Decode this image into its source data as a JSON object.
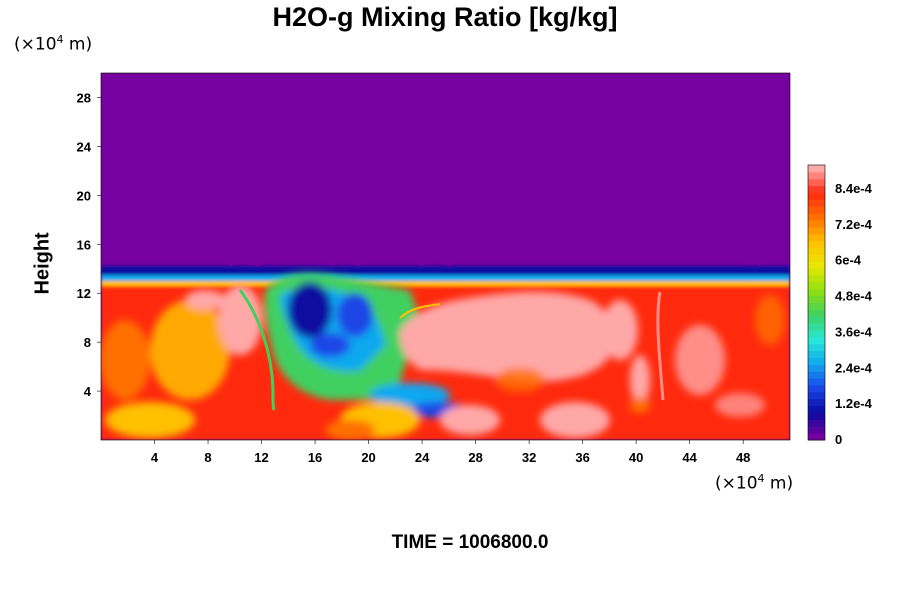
{
  "chart_data": {
    "type": "heatmap",
    "title": "H2O-g Mixing Ratio [kg/kg]",
    "ylabel": "Height",
    "x_unit": [
      "(×10",
      "4",
      " m)"
    ],
    "y_unit": [
      "(×10",
      "4",
      " m)"
    ],
    "x_ticks": [
      "4",
      "8",
      "12",
      "16",
      "20",
      "24",
      "28",
      "32",
      "36",
      "40",
      "44",
      "48"
    ],
    "y_ticks": [
      "4",
      "8",
      "12",
      "16",
      "20",
      "24",
      "28"
    ],
    "xlim": [
      0,
      51.5
    ],
    "ylim": [
      0,
      30
    ],
    "colorbar": {
      "range": [
        0,
        0.00092
      ],
      "tick_labels": [
        "0",
        "1.2e-4",
        "2.4e-4",
        "3.6e-4",
        "4.8e-4",
        "6e-4",
        "7.2e-4",
        "8.4e-4"
      ],
      "tick_values": [
        0,
        0.00012,
        0.00024,
        0.00036,
        0.00048,
        0.0006,
        0.00072,
        0.00084
      ],
      "colors": [
        "#7700a0",
        "#0a0aa0",
        "#1a46e6",
        "#10a8f0",
        "#28e8d8",
        "#40d060",
        "#90e010",
        "#e8e800",
        "#ffc000",
        "#ff7000",
        "#ff2a10",
        "#ffa8a8"
      ]
    },
    "field_summary": {
      "dry_layer": {
        "y_from": 14,
        "y_to": 30,
        "value": 0
      },
      "moist_layer_top": 13.5,
      "regions": [
        {
          "x": [
            0,
            13
          ],
          "y": [
            0,
            12.5
          ],
          "value": 0.00072
        },
        {
          "x": [
            13,
            18
          ],
          "y": [
            3,
            12
          ],
          "value": 0.00024
        },
        {
          "x": [
            18,
            23
          ],
          "y": [
            7,
            11.5
          ],
          "value": 0.0001
        },
        {
          "x": [
            23,
            28
          ],
          "y": [
            4,
            11.5
          ],
          "value": 0.00088
        },
        {
          "x": [
            28,
            41
          ],
          "y": [
            0,
            12
          ],
          "value": 0.0008
        },
        {
          "x": [
            41,
            51.5
          ],
          "y": [
            0,
            12.5
          ],
          "value": 0.00076
        }
      ]
    }
  },
  "time_label": "TIME = 1006800.0"
}
